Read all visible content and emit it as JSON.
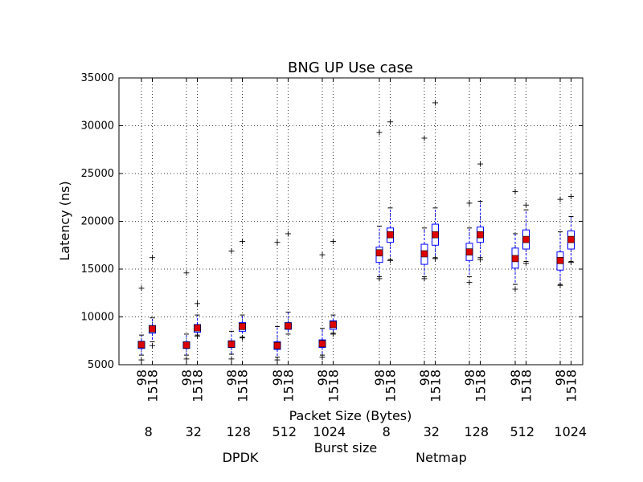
{
  "chart_data": {
    "type": "box",
    "title": "BNG UP Use case",
    "ylabel": "Latency (ns)",
    "xlabel": "Packet Size (Bytes)",
    "burst_label": "Burst size",
    "ylim": [
      5000,
      35000
    ],
    "yticks": [
      "5000",
      "10000",
      "15000",
      "20000",
      "25000",
      "30000",
      "35000"
    ],
    "grid": true,
    "groups": [
      {
        "name": "DPDK",
        "bursts": [
          "8",
          "32",
          "128",
          "512",
          "1024"
        ]
      },
      {
        "name": "Netmap",
        "bursts": [
          "8",
          "32",
          "128",
          "512",
          "1024"
        ]
      }
    ],
    "boxes": [
      {
        "stack": "DPDK",
        "burst": "8",
        "packet_size": "98",
        "mean": 7100,
        "q1": 6700,
        "median": 7050,
        "q3": 7450,
        "whisker_low": 6000,
        "whisker_high": 8100,
        "outliers": [
          13000,
          5500
        ]
      },
      {
        "stack": "DPDK",
        "burst": "8",
        "packet_size": "1518",
        "mean": 8750,
        "q1": 8300,
        "median": 8700,
        "q3": 9100,
        "whisker_low": 7400,
        "whisker_high": 9900,
        "outliers": [
          16200,
          7000
        ]
      },
      {
        "stack": "DPDK",
        "burst": "32",
        "packet_size": "98",
        "mean": 7050,
        "q1": 6700,
        "median": 7000,
        "q3": 7400,
        "whisker_low": 6000,
        "whisker_high": 8200,
        "outliers": [
          14600,
          5600
        ]
      },
      {
        "stack": "DPDK",
        "burst": "32",
        "packet_size": "1518",
        "mean": 8850,
        "q1": 8400,
        "median": 8800,
        "q3": 9200,
        "whisker_low": 8100,
        "whisker_high": 10200,
        "outliers": [
          11400,
          8000
        ]
      },
      {
        "stack": "DPDK",
        "burst": "128",
        "packet_size": "98",
        "mean": 7150,
        "q1": 6800,
        "median": 7100,
        "q3": 7500,
        "whisker_low": 6100,
        "whisker_high": 8500,
        "outliers": [
          16900,
          5600
        ]
      },
      {
        "stack": "DPDK",
        "burst": "128",
        "packet_size": "1518",
        "mean": 9000,
        "q1": 8500,
        "median": 8950,
        "q3": 9400,
        "whisker_low": 7900,
        "whisker_high": 10200,
        "outliers": [
          17900,
          7800
        ]
      },
      {
        "stack": "DPDK",
        "burst": "512",
        "packet_size": "98",
        "mean": 7000,
        "q1": 6600,
        "median": 6950,
        "q3": 7400,
        "whisker_low": 5800,
        "whisker_high": 9000,
        "outliers": [
          17800,
          5500
        ]
      },
      {
        "stack": "DPDK",
        "burst": "512",
        "packet_size": "1518",
        "mean": 9050,
        "q1": 8700,
        "median": 9000,
        "q3": 9400,
        "whisker_low": 8200,
        "whisker_high": 10500,
        "outliers": [
          18700
        ]
      },
      {
        "stack": "DPDK",
        "burst": "1024",
        "packet_size": "98",
        "mean": 7200,
        "q1": 6800,
        "median": 7150,
        "q3": 7600,
        "whisker_low": 6000,
        "whisker_high": 8800,
        "outliers": [
          16500,
          5800
        ]
      },
      {
        "stack": "DPDK",
        "burst": "1024",
        "packet_size": "1518",
        "mean": 9200,
        "q1": 8700,
        "median": 9150,
        "q3": 9600,
        "whisker_low": 8300,
        "whisker_high": 10200,
        "outliers": [
          17900,
          8200
        ]
      },
      {
        "stack": "Netmap",
        "burst": "8",
        "packet_size": "98",
        "mean": 16700,
        "q1": 15700,
        "median": 16600,
        "q3": 17300,
        "whisker_low": 14200,
        "whisker_high": 19500,
        "outliers": [
          29300,
          14000
        ]
      },
      {
        "stack": "Netmap",
        "burst": "8",
        "packet_size": "1518",
        "mean": 18600,
        "q1": 17800,
        "median": 18500,
        "q3": 19300,
        "whisker_low": 16000,
        "whisker_high": 21400,
        "outliers": [
          30400,
          15900
        ]
      },
      {
        "stack": "Netmap",
        "burst": "32",
        "packet_size": "98",
        "mean": 16600,
        "q1": 15500,
        "median": 16500,
        "q3": 17600,
        "whisker_low": 14200,
        "whisker_high": 19300,
        "outliers": [
          28700,
          14000
        ]
      },
      {
        "stack": "Netmap",
        "burst": "32",
        "packet_size": "1518",
        "mean": 18600,
        "q1": 17500,
        "median": 18500,
        "q3": 19700,
        "whisker_low": 16200,
        "whisker_high": 21400,
        "outliers": [
          32400,
          16100
        ]
      },
      {
        "stack": "Netmap",
        "burst": "128",
        "packet_size": "98",
        "mean": 16800,
        "q1": 15900,
        "median": 16700,
        "q3": 17700,
        "whisker_low": 14200,
        "whisker_high": 19300,
        "outliers": [
          21900,
          13600
        ]
      },
      {
        "stack": "Netmap",
        "burst": "128",
        "packet_size": "1518",
        "mean": 18600,
        "q1": 17800,
        "median": 18500,
        "q3": 19400,
        "whisker_low": 16200,
        "whisker_high": 22100,
        "outliers": [
          26000,
          16000
        ]
      },
      {
        "stack": "Netmap",
        "burst": "512",
        "packet_size": "98",
        "mean": 16100,
        "q1": 15100,
        "median": 16000,
        "q3": 17200,
        "whisker_low": 13400,
        "whisker_high": 18700,
        "outliers": [
          23100,
          12900
        ]
      },
      {
        "stack": "Netmap",
        "burst": "512",
        "packet_size": "1518",
        "mean": 18100,
        "q1": 17100,
        "median": 18000,
        "q3": 19100,
        "whisker_low": 15800,
        "whisker_high": 21200,
        "outliers": [
          21700,
          15600
        ]
      },
      {
        "stack": "Netmap",
        "burst": "1024",
        "packet_size": "98",
        "mean": 15900,
        "q1": 14900,
        "median": 15800,
        "q3": 16800,
        "whisker_low": 13400,
        "whisker_high": 18900,
        "outliers": [
          22300,
          13300
        ]
      },
      {
        "stack": "Netmap",
        "burst": "1024",
        "packet_size": "1518",
        "mean": 18100,
        "q1": 17100,
        "median": 18000,
        "q3": 19000,
        "whisker_low": 15800,
        "whisker_high": 20500,
        "outliers": [
          22600,
          15700
        ]
      }
    ],
    "colors": {
      "box": "#0000ff",
      "median": "#ff0000",
      "mean_marker": "#dd0000",
      "outlier": "#000000",
      "grid": "#000000"
    }
  }
}
